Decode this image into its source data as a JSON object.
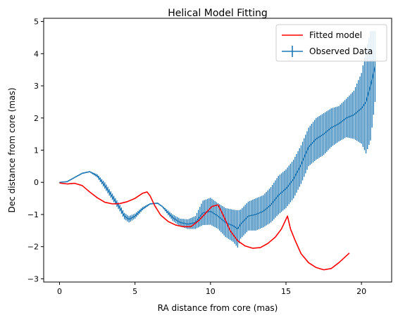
{
  "chart_data": {
    "type": "line",
    "title": "Helical Model Fitting",
    "xlabel": "RA distance from core (mas)",
    "ylabel": "Dec distance from core (mas)",
    "xlim": [
      -1.05,
      22.0
    ],
    "ylim": [
      -3.1,
      5.1
    ],
    "xticks": [
      0,
      5,
      10,
      15,
      20
    ],
    "yticks": [
      -3,
      -2,
      -1,
      0,
      1,
      2,
      3,
      4,
      5
    ],
    "grid": false,
    "legend_position": "top-right",
    "series": [
      {
        "name": "Fitted model",
        "color": "#ff0000",
        "style": "line",
        "x": [
          0.0,
          0.5,
          1.0,
          1.5,
          2.0,
          2.5,
          3.0,
          3.5,
          4.0,
          4.5,
          5.0,
          5.5,
          5.8,
          6.0,
          6.3,
          6.7,
          7.2,
          7.7,
          8.2,
          8.7,
          9.2,
          9.7,
          10.1,
          10.5,
          10.8,
          11.3,
          11.8,
          12.3,
          12.8,
          13.3,
          13.8,
          14.3,
          14.7,
          15.1,
          15.3,
          15.6,
          16.0,
          16.5,
          17.0,
          17.5,
          18.0,
          18.5,
          19.2
        ],
        "y": [
          -0.02,
          -0.05,
          -0.03,
          -0.1,
          -0.3,
          -0.48,
          -0.62,
          -0.67,
          -0.66,
          -0.6,
          -0.5,
          -0.34,
          -0.3,
          -0.42,
          -0.72,
          -1.02,
          -1.22,
          -1.33,
          -1.38,
          -1.38,
          -1.2,
          -0.95,
          -0.75,
          -0.7,
          -0.98,
          -1.5,
          -1.82,
          -1.98,
          -2.05,
          -2.03,
          -1.9,
          -1.7,
          -1.45,
          -1.05,
          -1.45,
          -1.8,
          -2.22,
          -2.5,
          -2.65,
          -2.72,
          -2.68,
          -2.5,
          -2.2
        ]
      },
      {
        "name": "Observed Data",
        "color": "#1f77b4",
        "style": "errorbar",
        "x": [
          0.0,
          0.5,
          1.0,
          1.5,
          2.0,
          2.5,
          3.0,
          3.5,
          4.0,
          4.3,
          4.6,
          5.0,
          5.5,
          6.0,
          6.5,
          6.8,
          7.0,
          7.5,
          8.0,
          8.5,
          9.0,
          9.5,
          10.0,
          10.5,
          11.0,
          11.5,
          11.8,
          12.0,
          12.5,
          13.0,
          13.5,
          14.0,
          14.5,
          15.0,
          15.5,
          16.0,
          16.5,
          17.0,
          17.5,
          18.0,
          18.5,
          19.0,
          19.5,
          20.0,
          20.3,
          20.6,
          20.9
        ],
        "y": [
          0.0,
          0.02,
          0.15,
          0.28,
          0.33,
          0.2,
          -0.1,
          -0.45,
          -0.8,
          -1.05,
          -1.15,
          -1.05,
          -0.82,
          -0.67,
          -0.65,
          -0.75,
          -0.85,
          -1.1,
          -1.25,
          -1.3,
          -1.25,
          -0.95,
          -0.9,
          -1.05,
          -1.25,
          -1.35,
          -1.45,
          -1.3,
          -1.05,
          -1.0,
          -0.9,
          -0.7,
          -0.4,
          -0.2,
          0.1,
          0.55,
          1.1,
          1.35,
          1.5,
          1.7,
          1.82,
          2.0,
          2.1,
          2.3,
          2.5,
          3.0,
          3.6
        ],
        "yerr": [
          0.01,
          0.02,
          0.02,
          0.02,
          0.02,
          0.05,
          0.1,
          0.1,
          0.1,
          0.1,
          0.1,
          0.08,
          0.05,
          0.02,
          0.02,
          0.02,
          0.05,
          0.1,
          0.12,
          0.15,
          0.2,
          0.38,
          0.42,
          0.4,
          0.45,
          0.5,
          0.58,
          0.45,
          0.45,
          0.5,
          0.5,
          0.55,
          0.6,
          0.6,
          0.6,
          0.6,
          0.6,
          0.65,
          0.65,
          0.6,
          0.55,
          0.6,
          0.75,
          1.1,
          1.6,
          1.7,
          1.1
        ]
      }
    ]
  }
}
